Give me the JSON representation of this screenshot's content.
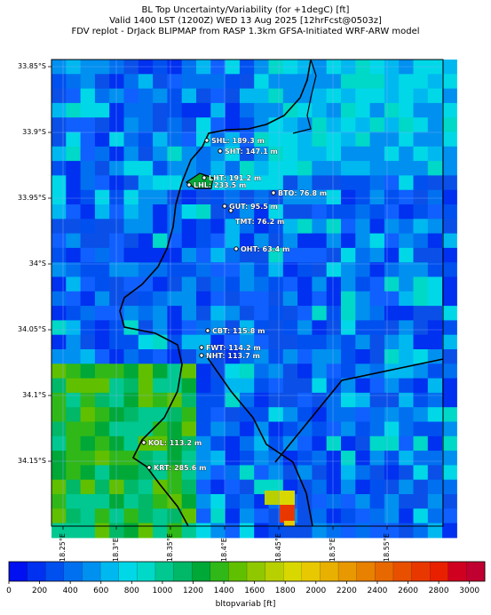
{
  "title": {
    "line1": "BL Top Uncertainty/Variability (for +1degC) [ft]",
    "line2": "Valid 1400 LST (1200Z) WED 13 Aug 2025 [12hrFcst@0503z]",
    "line3": "FDV replot - DrJack BLIPMAP from RASP 1.3km GFSA-Initiated WRF-ARW model"
  },
  "lat_labels": [
    "33.85°S",
    "33.9°S",
    "33.95°S",
    "34°S",
    "34.05°S",
    "34.1°S",
    "34.15°S"
  ],
  "lon_labels": [
    "18.25°E",
    "18.3°E",
    "18.35°E",
    "18.4°E",
    "18.45°E",
    "18.5°E",
    "18.55°E"
  ],
  "sites": [
    {
      "label": "SHL: 189.3 m"
    },
    {
      "label": "SHT: 147.1 m"
    },
    {
      "label": "LHT: 191.2 m"
    },
    {
      "label": "LHL: 233.5 m"
    },
    {
      "label": "BTO: 76.8 m"
    },
    {
      "label": "GUT: 95.5 m"
    },
    {
      "label": "TMT: 76.2 m"
    },
    {
      "label": "OHT: 63.4 m"
    },
    {
      "label": "CBT: 115.8 m"
    },
    {
      "label": "FWT: 114.2 m"
    },
    {
      "label": "NHT: 113.7 m"
    },
    {
      "label": "KOL: 113.2 m"
    },
    {
      "label": "KRT: 285.6 m"
    }
  ],
  "colorbar": {
    "title": "bltopvariab [ft]",
    "tick_labels": [
      "0",
      "200",
      "400",
      "600",
      "800",
      "1000",
      "1200",
      "1400",
      "1600",
      "1800",
      "2000",
      "2200",
      "2400",
      "2600",
      "2800",
      "3000"
    ],
    "colors": [
      "#0010f0",
      "#0030f0",
      "#0050f0",
      "#0070f0",
      "#0090f0",
      "#00b8f0",
      "#00d8e8",
      "#00d8c8",
      "#00c890",
      "#00b868",
      "#00a838",
      "#30b818",
      "#60c000",
      "#90c800",
      "#b8d000",
      "#d8d800",
      "#e8c800",
      "#e8b000",
      "#e89800",
      "#e88000",
      "#e86800",
      "#e85000",
      "#e83800",
      "#e82000",
      "#d00020",
      "#c00030"
    ]
  }
}
